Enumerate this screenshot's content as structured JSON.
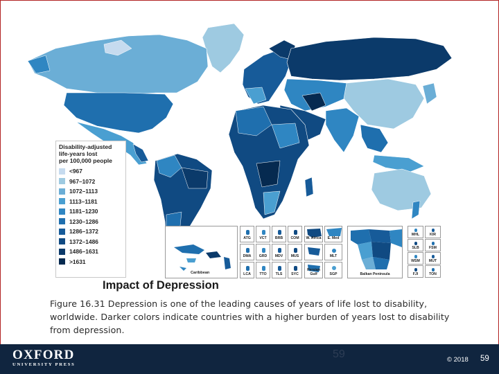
{
  "map": {
    "legend": {
      "title_lines": [
        "Disability-adjusted",
        "life-years lost",
        "per 100,000 people"
      ],
      "items": [
        {
          "label": "<967",
          "color": "#c6dbef"
        },
        {
          "label": "967–1072",
          "color": "#9ecae1"
        },
        {
          "label": "1072–1113",
          "color": "#6baed6"
        },
        {
          "label": "1113–1181",
          "color": "#4a9fd1"
        },
        {
          "label": "1181–1230",
          "color": "#2f86c2"
        },
        {
          "label": "1230–1286",
          "color": "#1f6fae"
        },
        {
          "label": "1286–1372",
          "color": "#175b99"
        },
        {
          "label": "1372–1486",
          "color": "#104a82"
        },
        {
          "label": "1486–1631",
          "color": "#0b3a6a"
        },
        {
          "label": ">1631",
          "color": "#062a50"
        }
      ]
    },
    "insets": {
      "caribbean": "Caribbean",
      "small_boxes": [
        "ATG",
        "VCT",
        "BRB",
        "COM",
        "DMA",
        "GRD",
        "MDV",
        "MUS",
        "LCA",
        "TTO",
        "TLS",
        "SYC"
      ],
      "w_africa": "W. Africa",
      "e_med": "E. Med",
      "mlt": "MLT",
      "persian_gulf": "Persian Gulf",
      "sgp": "SGP",
      "balkan": "Balkan Peninsula",
      "pacific": [
        "MHL",
        "KIR",
        "SLB",
        "FSM",
        "WSM",
        "MUT",
        "FJI",
        "TON"
      ]
    }
  },
  "caption": {
    "title": "Impact of Depression",
    "text": "Figure 16.31 Depression is one of the leading causes of years of life lost to disability, worldwide. Darker colors indicate countries with a higher burden of years lost to disability from depression."
  },
  "footer": {
    "logo_main": "OXFORD",
    "logo_sub": "UNIVERSITY PRESS",
    "center_page": "59",
    "copyright": "© 2018",
    "page_number": "59"
  }
}
